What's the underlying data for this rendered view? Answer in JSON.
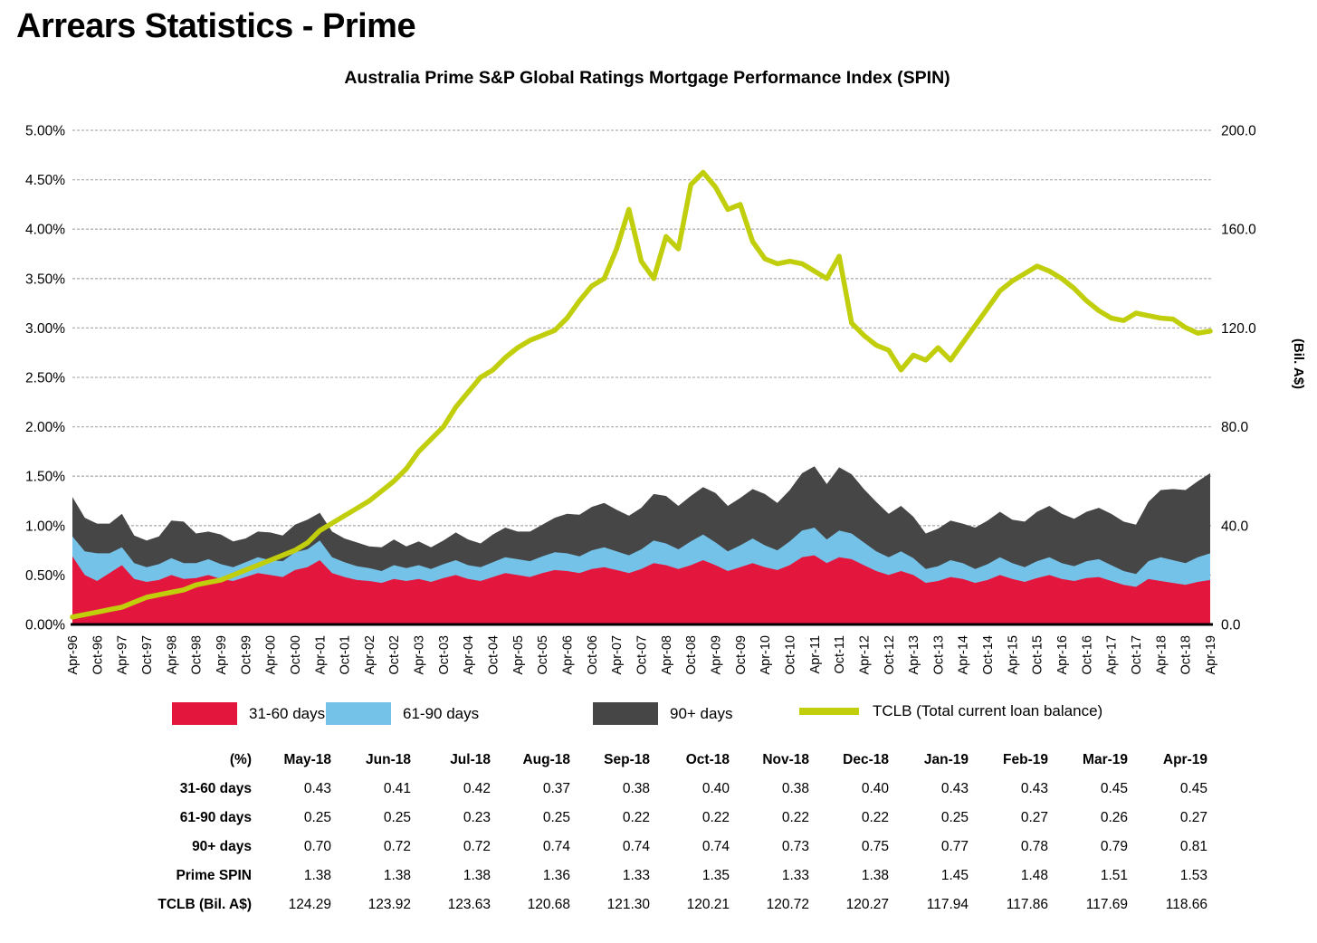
{
  "page": {
    "title": "Arrears Statistics - Prime"
  },
  "chart_data": {
    "type": "area",
    "title": "Australia Prime S&P Global Ratings Mortgage Performance Index (SPIN)",
    "x_start": "Apr-96",
    "x_step_months": 3,
    "x_tick_labels": [
      "Apr-96",
      "Oct-96",
      "Apr-97",
      "Oct-97",
      "Apr-98",
      "Oct-98",
      "Apr-99",
      "Oct-99",
      "Apr-00",
      "Oct-00",
      "Apr-01",
      "Oct-01",
      "Apr-02",
      "Oct-02",
      "Apr-03",
      "Oct-03",
      "Apr-04",
      "Oct-04",
      "Apr-05",
      "Oct-05",
      "Apr-06",
      "Oct-06",
      "Apr-07",
      "Oct-07",
      "Apr-08",
      "Oct-08",
      "Apr-09",
      "Oct-09",
      "Apr-10",
      "Oct-10",
      "Apr-11",
      "Oct-11",
      "Apr-12",
      "Oct-12",
      "Apr-13",
      "Oct-13",
      "Apr-14",
      "Oct-14",
      "Apr-15",
      "Oct-15",
      "Apr-16",
      "Oct-16",
      "Apr-17",
      "Oct-17",
      "Apr-18",
      "Oct-18",
      "Apr-19"
    ],
    "left_axis": {
      "range": [
        0,
        5
      ],
      "tick_step": 0.5,
      "ticks": [
        "5.00%",
        "4.50%",
        "4.00%",
        "3.50%",
        "3.00%",
        "2.50%",
        "2.00%",
        "1.50%",
        "1.00%",
        "0.50%",
        "0.00%"
      ]
    },
    "right_axis": {
      "range": [
        0,
        200
      ],
      "tick_step": 40,
      "title": "(Bil. A$)",
      "ticks": [
        "200.0",
        "160.0",
        "120.0",
        "80.0",
        "40.0",
        "0.0"
      ]
    },
    "grid": true,
    "grid_color": "#b5aeb5",
    "legend_position": "bottom",
    "series": [
      {
        "name": "31-60 days",
        "type": "area",
        "stack": true,
        "axis": "left",
        "color": "#E3173E",
        "values": [
          0.69,
          0.5,
          0.44,
          0.52,
          0.6,
          0.46,
          0.43,
          0.45,
          0.5,
          0.46,
          0.47,
          0.5,
          0.46,
          0.44,
          0.48,
          0.52,
          0.5,
          0.48,
          0.55,
          0.58,
          0.65,
          0.52,
          0.48,
          0.45,
          0.44,
          0.42,
          0.46,
          0.44,
          0.46,
          0.43,
          0.47,
          0.5,
          0.46,
          0.44,
          0.48,
          0.52,
          0.5,
          0.48,
          0.52,
          0.55,
          0.54,
          0.52,
          0.56,
          0.58,
          0.55,
          0.52,
          0.56,
          0.62,
          0.6,
          0.56,
          0.6,
          0.65,
          0.6,
          0.54,
          0.58,
          0.62,
          0.58,
          0.55,
          0.6,
          0.68,
          0.7,
          0.62,
          0.68,
          0.66,
          0.6,
          0.54,
          0.5,
          0.54,
          0.5,
          0.42,
          0.44,
          0.48,
          0.46,
          0.42,
          0.45,
          0.5,
          0.46,
          0.43,
          0.47,
          0.5,
          0.46,
          0.44,
          0.47,
          0.48,
          0.44,
          0.4,
          0.38,
          0.46,
          0.44,
          0.42,
          0.4,
          0.43,
          0.45
        ]
      },
      {
        "name": "61-90 days",
        "type": "area",
        "stack": true,
        "axis": "left",
        "color": "#74C2E8",
        "values": [
          0.2,
          0.24,
          0.28,
          0.2,
          0.18,
          0.16,
          0.15,
          0.16,
          0.17,
          0.16,
          0.15,
          0.16,
          0.15,
          0.14,
          0.15,
          0.16,
          0.15,
          0.16,
          0.18,
          0.18,
          0.2,
          0.16,
          0.15,
          0.14,
          0.13,
          0.12,
          0.14,
          0.13,
          0.14,
          0.13,
          0.14,
          0.15,
          0.14,
          0.14,
          0.15,
          0.16,
          0.16,
          0.16,
          0.17,
          0.18,
          0.18,
          0.17,
          0.19,
          0.2,
          0.19,
          0.18,
          0.2,
          0.23,
          0.22,
          0.2,
          0.24,
          0.26,
          0.23,
          0.2,
          0.22,
          0.25,
          0.22,
          0.2,
          0.24,
          0.27,
          0.28,
          0.24,
          0.27,
          0.26,
          0.23,
          0.2,
          0.18,
          0.2,
          0.17,
          0.14,
          0.15,
          0.17,
          0.16,
          0.14,
          0.16,
          0.18,
          0.16,
          0.15,
          0.17,
          0.18,
          0.16,
          0.15,
          0.17,
          0.18,
          0.16,
          0.14,
          0.13,
          0.18,
          0.24,
          0.23,
          0.22,
          0.25,
          0.27
        ]
      },
      {
        "name": "90+ days",
        "type": "area",
        "stack": true,
        "axis": "left",
        "color": "#464646",
        "values": [
          0.4,
          0.34,
          0.3,
          0.3,
          0.34,
          0.28,
          0.27,
          0.28,
          0.38,
          0.42,
          0.3,
          0.28,
          0.3,
          0.26,
          0.24,
          0.26,
          0.28,
          0.26,
          0.28,
          0.3,
          0.28,
          0.26,
          0.24,
          0.24,
          0.22,
          0.24,
          0.26,
          0.22,
          0.24,
          0.22,
          0.24,
          0.28,
          0.26,
          0.24,
          0.28,
          0.3,
          0.28,
          0.3,
          0.32,
          0.35,
          0.4,
          0.42,
          0.44,
          0.45,
          0.42,
          0.4,
          0.42,
          0.47,
          0.48,
          0.44,
          0.46,
          0.48,
          0.5,
          0.46,
          0.48,
          0.5,
          0.52,
          0.48,
          0.52,
          0.58,
          0.62,
          0.56,
          0.64,
          0.6,
          0.54,
          0.5,
          0.44,
          0.46,
          0.42,
          0.36,
          0.38,
          0.4,
          0.4,
          0.42,
          0.44,
          0.46,
          0.44,
          0.46,
          0.5,
          0.52,
          0.5,
          0.48,
          0.5,
          0.52,
          0.52,
          0.5,
          0.5,
          0.6,
          0.68,
          0.72,
          0.74,
          0.77,
          0.81
        ]
      },
      {
        "name": "TCLB (Total current loan balance)",
        "type": "line",
        "stack": false,
        "axis": "right",
        "color": "#C0CE0C",
        "values": [
          3,
          4,
          5,
          6,
          7,
          9,
          11,
          12,
          13,
          14,
          16,
          17,
          18,
          20,
          22,
          24,
          26,
          28,
          30,
          33,
          38,
          41,
          44,
          47,
          50,
          54,
          58,
          63,
          70,
          75,
          80,
          88,
          94,
          100,
          103,
          108,
          112,
          115,
          117,
          119,
          124,
          131,
          137,
          140,
          152,
          168,
          147,
          140,
          157,
          152,
          178,
          183,
          177,
          168,
          170,
          155,
          148,
          146,
          147,
          146,
          143,
          140,
          149,
          122,
          117,
          113,
          111,
          103,
          109,
          107,
          112,
          107,
          114,
          121,
          128,
          135,
          139,
          142,
          145,
          143,
          140,
          136,
          131,
          127,
          124,
          123,
          126,
          125,
          124,
          123.6,
          120.2,
          117.9,
          118.7
        ]
      }
    ]
  },
  "legend": {
    "items": [
      {
        "label": "31-60 days",
        "color": "#E3173E",
        "swatch": "box"
      },
      {
        "label": "61-90 days",
        "color": "#74C2E8",
        "swatch": "box"
      },
      {
        "label": "90+ days",
        "color": "#464646",
        "swatch": "box"
      },
      {
        "label": "TCLB (Total current loan balance)",
        "color": "#C0CE0C",
        "swatch": "line"
      }
    ]
  },
  "table": {
    "corner": "(%)",
    "columns": [
      "May-18",
      "Jun-18",
      "Jul-18",
      "Aug-18",
      "Sep-18",
      "Oct-18",
      "Nov-18",
      "Dec-18",
      "Jan-19",
      "Feb-19",
      "Mar-19",
      "Apr-19"
    ],
    "rows": [
      {
        "label": "31-60 days",
        "values": [
          "0.43",
          "0.41",
          "0.42",
          "0.37",
          "0.38",
          "0.40",
          "0.38",
          "0.40",
          "0.43",
          "0.43",
          "0.45",
          "0.45"
        ]
      },
      {
        "label": "61-90 days",
        "values": [
          "0.25",
          "0.25",
          "0.23",
          "0.25",
          "0.22",
          "0.22",
          "0.22",
          "0.22",
          "0.25",
          "0.27",
          "0.26",
          "0.27"
        ]
      },
      {
        "label": "90+ days",
        "values": [
          "0.70",
          "0.72",
          "0.72",
          "0.74",
          "0.74",
          "0.74",
          "0.73",
          "0.75",
          "0.77",
          "0.78",
          "0.79",
          "0.81"
        ]
      },
      {
        "label": "Prime SPIN",
        "values": [
          "1.38",
          "1.38",
          "1.38",
          "1.36",
          "1.33",
          "1.35",
          "1.33",
          "1.38",
          "1.45",
          "1.48",
          "1.51",
          "1.53"
        ]
      },
      {
        "label": "TCLB (Bil. A$)",
        "values": [
          "124.29",
          "123.92",
          "123.63",
          "120.68",
          "121.30",
          "120.21",
          "120.72",
          "120.27",
          "117.94",
          "117.86",
          "117.69",
          "118.66"
        ]
      }
    ]
  }
}
